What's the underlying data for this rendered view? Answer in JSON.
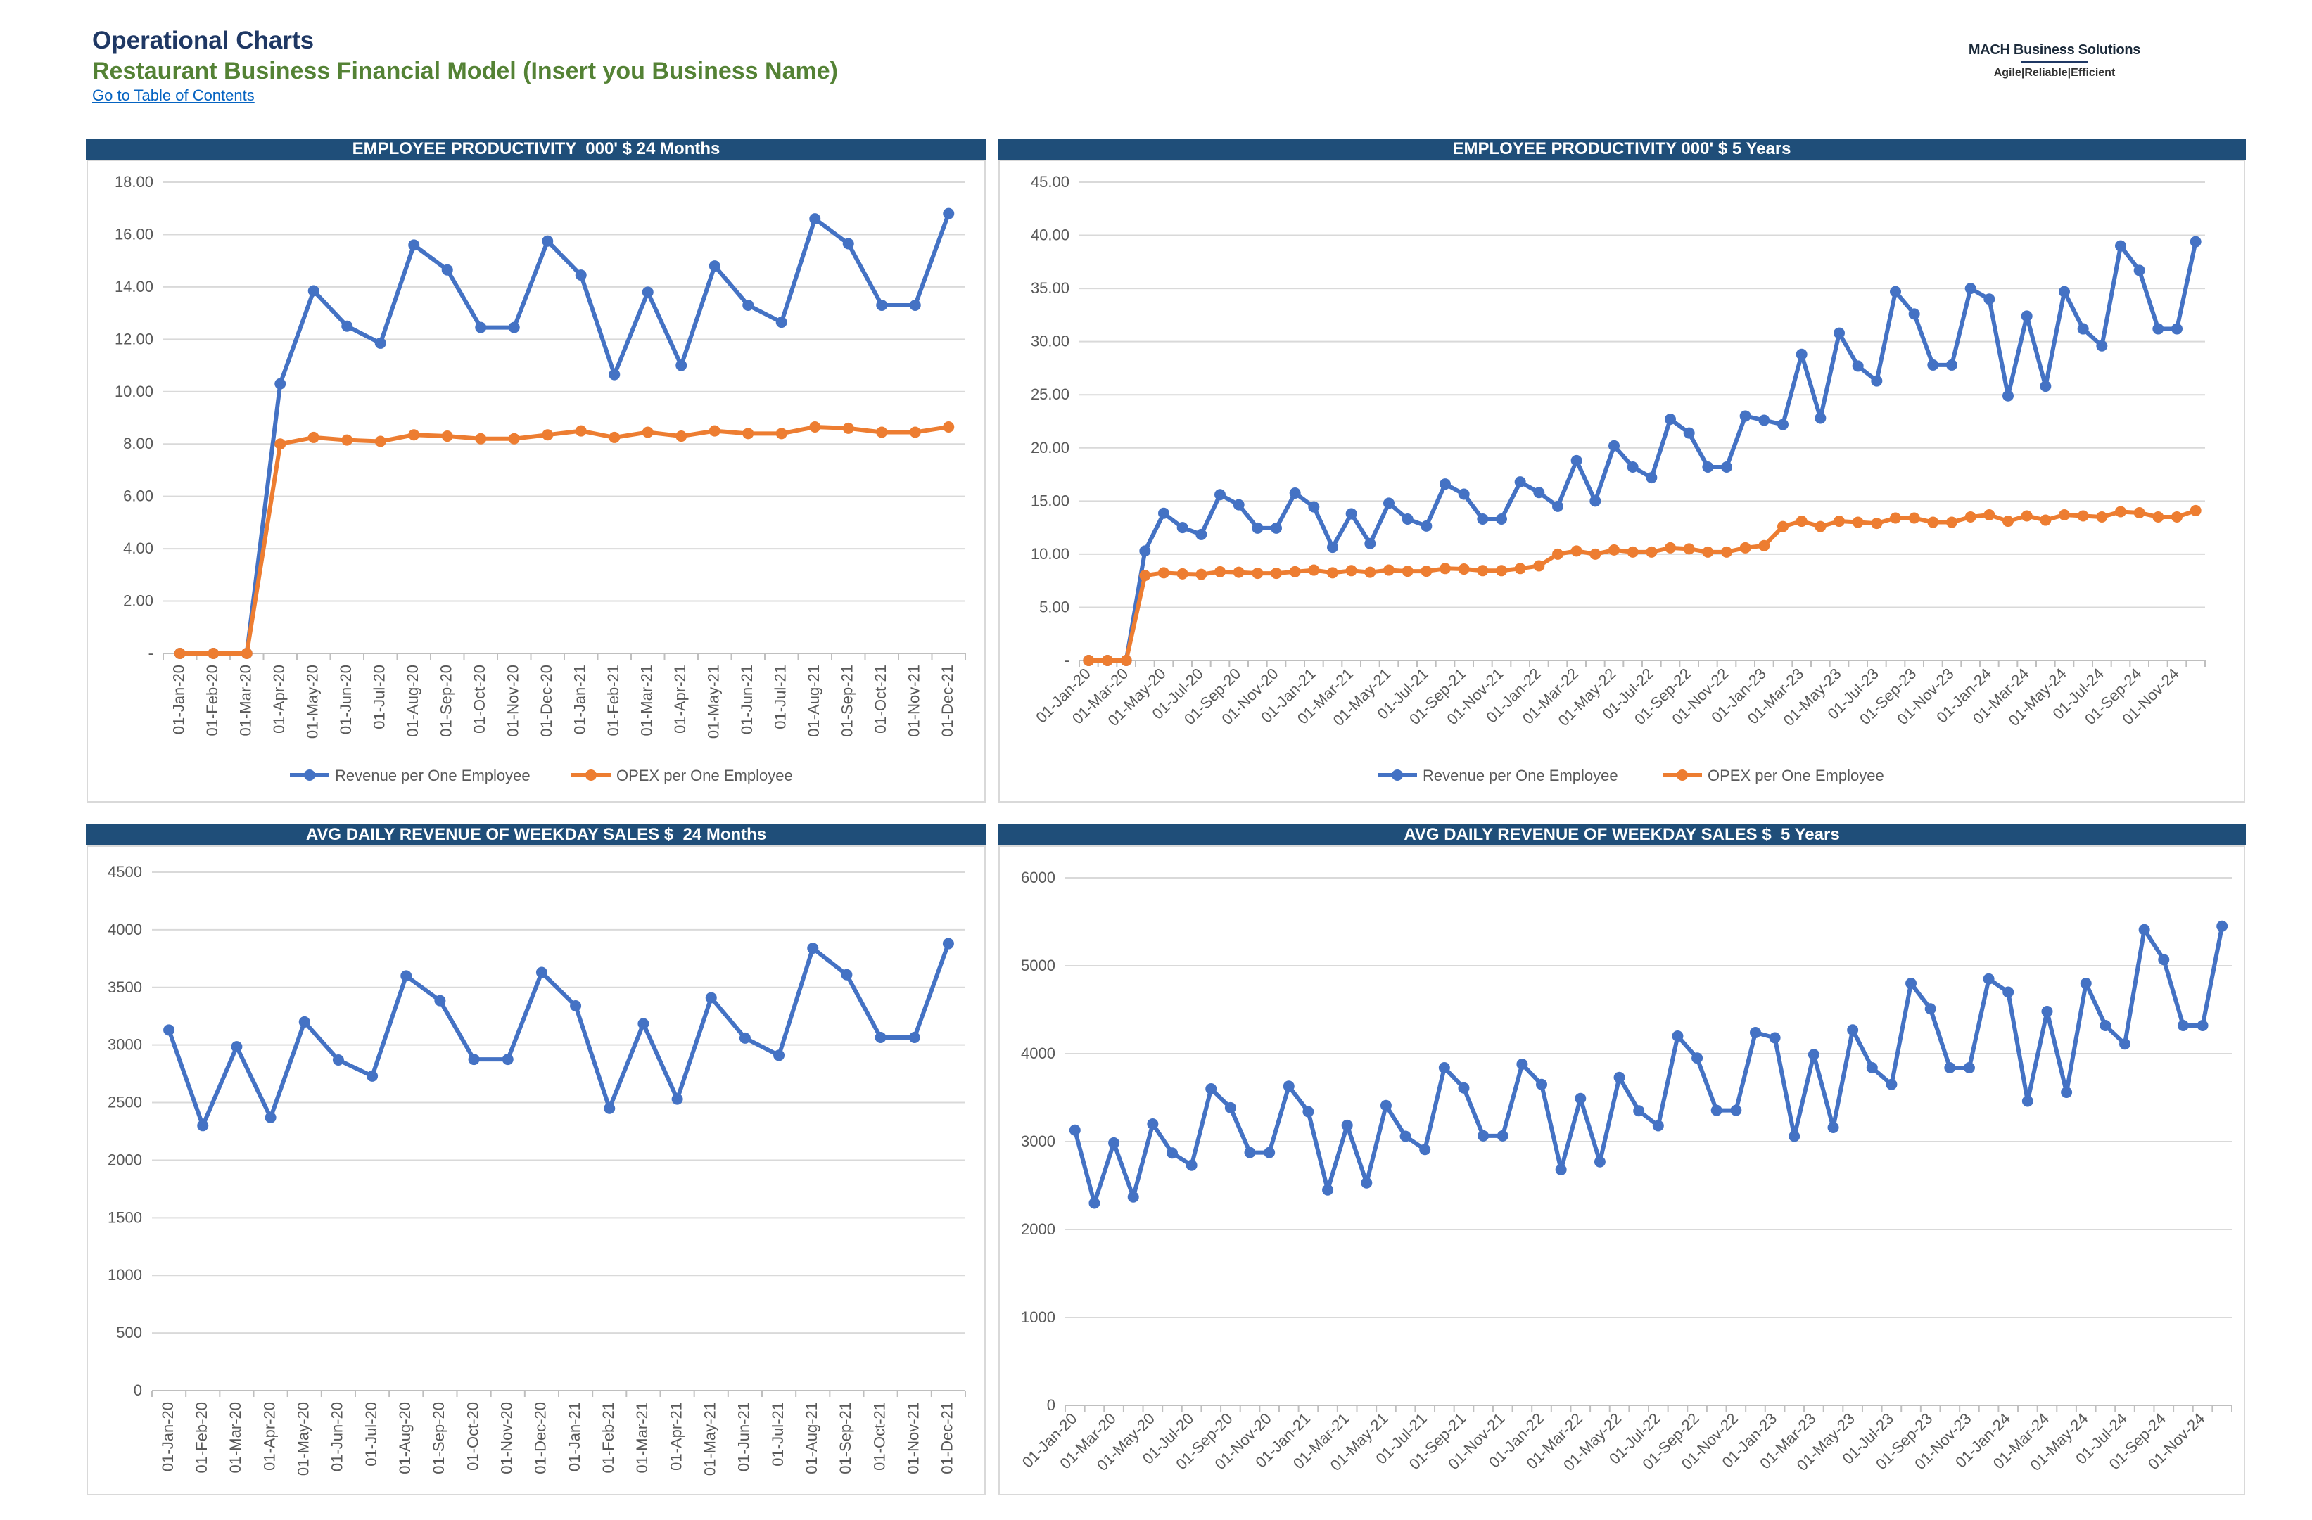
{
  "header": {
    "title": "Operational Charts",
    "subtitle": "Restaurant Business Financial Model (Insert you Business Name)",
    "toc_link": "Go to Table of Contents"
  },
  "logo": {
    "name": "MACH Business Solutions",
    "tagline": "Agile|Reliable|Efficient"
  },
  "colors": {
    "header_bar": "#1f4e79",
    "revenue_series": "#4472c4",
    "opex_series": "#ed7d31",
    "title_blue": "#1f3864",
    "subtitle_green": "#548235"
  },
  "chart_data": [
    {
      "type": "line",
      "title": "EMPLOYEE PRODUCTIVITY  000' $ 24 Months",
      "x": [
        "01-Jan-20",
        "01-Feb-20",
        "01-Mar-20",
        "01-Apr-20",
        "01-May-20",
        "01-Jun-20",
        "01-Jul-20",
        "01-Aug-20",
        "01-Sep-20",
        "01-Oct-20",
        "01-Nov-20",
        "01-Dec-20",
        "01-Jan-21",
        "01-Feb-21",
        "01-Mar-21",
        "01-Apr-21",
        "01-May-21",
        "01-Jun-21",
        "01-Jul-21",
        "01-Aug-21",
        "01-Sep-21",
        "01-Oct-21",
        "01-Nov-21",
        "01-Dec-21"
      ],
      "x_tick_labels": [
        "01-Jan-20",
        "01-Feb-20",
        "01-Mar-20",
        "01-Apr-20",
        "01-May-20",
        "01-Jun-20",
        "01-Jul-20",
        "01-Aug-20",
        "01-Sep-20",
        "01-Oct-20",
        "01-Nov-20",
        "01-Dec-20",
        "01-Jan-21",
        "01-Feb-21",
        "01-Mar-21",
        "01-Apr-21",
        "01-May-21",
        "01-Jun-21",
        "01-Jul-21",
        "01-Aug-21",
        "01-Sep-21",
        "01-Oct-21",
        "01-Nov-21",
        "01-Dec-21"
      ],
      "y_ticks": [
        "-",
        "2.00",
        "4.00",
        "6.00",
        "8.00",
        "10.00",
        "12.00",
        "14.00",
        "16.00",
        "18.00"
      ],
      "ylim": [
        0,
        18
      ],
      "grid": true,
      "legend_position": "bottom",
      "series": [
        {
          "name": "Revenue per One Employee",
          "color": "#4472c4",
          "values": [
            0,
            0,
            0,
            10.3,
            13.85,
            12.5,
            11.85,
            15.6,
            14.65,
            12.45,
            12.45,
            15.75,
            14.45,
            10.65,
            13.8,
            11.0,
            14.8,
            13.3,
            12.65,
            16.6,
            15.65,
            13.3,
            13.3,
            16.8
          ]
        },
        {
          "name": "OPEX per One Employee",
          "color": "#ed7d31",
          "values": [
            0,
            0,
            0,
            8.0,
            8.25,
            8.15,
            8.1,
            8.35,
            8.3,
            8.2,
            8.2,
            8.35,
            8.5,
            8.25,
            8.45,
            8.3,
            8.5,
            8.4,
            8.4,
            8.65,
            8.6,
            8.45,
            8.45,
            8.65
          ]
        }
      ]
    },
    {
      "type": "line",
      "title": "EMPLOYEE PRODUCTIVITY 000' $ 5 Years",
      "x": [
        "01-Jan-20",
        "01-Feb-20",
        "01-Mar-20",
        "01-Apr-20",
        "01-May-20",
        "01-Jun-20",
        "01-Jul-20",
        "01-Aug-20",
        "01-Sep-20",
        "01-Oct-20",
        "01-Nov-20",
        "01-Dec-20",
        "01-Jan-21",
        "01-Feb-21",
        "01-Mar-21",
        "01-Apr-21",
        "01-May-21",
        "01-Jun-21",
        "01-Jul-21",
        "01-Aug-21",
        "01-Sep-21",
        "01-Oct-21",
        "01-Nov-21",
        "01-Dec-21",
        "01-Jan-22",
        "01-Feb-22",
        "01-Mar-22",
        "01-Apr-22",
        "01-May-22",
        "01-Jun-22",
        "01-Jul-22",
        "01-Aug-22",
        "01-Sep-22",
        "01-Oct-22",
        "01-Nov-22",
        "01-Dec-22",
        "01-Jan-23",
        "01-Feb-23",
        "01-Mar-23",
        "01-Apr-23",
        "01-May-23",
        "01-Jun-23",
        "01-Jul-23",
        "01-Aug-23",
        "01-Sep-23",
        "01-Oct-23",
        "01-Nov-23",
        "01-Dec-23",
        "01-Jan-24",
        "01-Feb-24",
        "01-Mar-24",
        "01-Apr-24",
        "01-May-24",
        "01-Jun-24",
        "01-Jul-24",
        "01-Aug-24",
        "01-Sep-24",
        "01-Oct-24",
        "01-Nov-24",
        "01-Dec-24"
      ],
      "x_tick_labels": [
        "01-Jan-20",
        "01-Mar-20",
        "01-May-20",
        "01-Jul-20",
        "01-Sep-20",
        "01-Nov-20",
        "01-Jan-21",
        "01-Mar-21",
        "01-May-21",
        "01-Jul-21",
        "01-Sep-21",
        "01-Nov-21",
        "01-Jan-22",
        "01-Mar-22",
        "01-May-22",
        "01-Jul-22",
        "01-Sep-22",
        "01-Nov-22",
        "01-Jan-23",
        "01-Mar-23",
        "01-May-23",
        "01-Jul-23",
        "01-Sep-23",
        "01-Nov-23",
        "01-Jan-24",
        "01-Mar-24",
        "01-May-24",
        "01-Jul-24",
        "01-Sep-24",
        "01-Nov-24"
      ],
      "y_ticks": [
        "-",
        "5.00",
        "10.00",
        "15.00",
        "20.00",
        "25.00",
        "30.00",
        "35.00",
        "40.00",
        "45.00"
      ],
      "ylim": [
        0,
        45
      ],
      "grid": true,
      "legend_position": "bottom",
      "series": [
        {
          "name": "Revenue per One Employee",
          "color": "#4472c4",
          "values": [
            0,
            0,
            0,
            10.3,
            13.85,
            12.5,
            11.85,
            15.6,
            14.65,
            12.45,
            12.45,
            15.75,
            14.45,
            10.65,
            13.8,
            11.0,
            14.8,
            13.3,
            12.65,
            16.6,
            15.65,
            13.3,
            13.3,
            16.8,
            15.8,
            14.5,
            18.8,
            15.0,
            20.2,
            18.2,
            17.2,
            22.7,
            21.4,
            18.2,
            18.2,
            23.0,
            22.6,
            22.2,
            28.8,
            22.8,
            30.8,
            27.7,
            26.3,
            34.7,
            32.6,
            27.8,
            27.8,
            35.0,
            34.0,
            24.9,
            32.4,
            25.8,
            34.7,
            31.2,
            29.6,
            39.0,
            36.7,
            31.2,
            31.2,
            39.4
          ]
        },
        {
          "name": "OPEX per One Employee",
          "color": "#ed7d31",
          "values": [
            0,
            0,
            0,
            8.0,
            8.25,
            8.15,
            8.1,
            8.35,
            8.3,
            8.2,
            8.2,
            8.35,
            8.5,
            8.25,
            8.45,
            8.3,
            8.5,
            8.4,
            8.4,
            8.65,
            8.6,
            8.45,
            8.45,
            8.65,
            8.9,
            10.0,
            10.3,
            10.0,
            10.4,
            10.2,
            10.2,
            10.6,
            10.5,
            10.2,
            10.2,
            10.6,
            10.8,
            12.6,
            13.1,
            12.6,
            13.1,
            13.0,
            12.9,
            13.4,
            13.4,
            13.0,
            13.0,
            13.5,
            13.7,
            13.1,
            13.6,
            13.2,
            13.7,
            13.6,
            13.5,
            14.0,
            13.9,
            13.5,
            13.5,
            14.1
          ]
        }
      ]
    },
    {
      "type": "line",
      "title": "AVG DAILY REVENUE OF WEEKDAY SALES $  24 Months",
      "x": [
        "01-Jan-20",
        "01-Feb-20",
        "01-Mar-20",
        "01-Apr-20",
        "01-May-20",
        "01-Jun-20",
        "01-Jul-20",
        "01-Aug-20",
        "01-Sep-20",
        "01-Oct-20",
        "01-Nov-20",
        "01-Dec-20",
        "01-Jan-21",
        "01-Feb-21",
        "01-Mar-21",
        "01-Apr-21",
        "01-May-21",
        "01-Jun-21",
        "01-Jul-21",
        "01-Aug-21",
        "01-Sep-21",
        "01-Oct-21",
        "01-Nov-21",
        "01-Dec-21"
      ],
      "x_tick_labels": [
        "01-Jan-20",
        "01-Feb-20",
        "01-Mar-20",
        "01-Apr-20",
        "01-May-20",
        "01-Jun-20",
        "01-Jul-20",
        "01-Aug-20",
        "01-Sep-20",
        "01-Oct-20",
        "01-Nov-20",
        "01-Dec-20",
        "01-Jan-21",
        "01-Feb-21",
        "01-Mar-21",
        "01-Apr-21",
        "01-May-21",
        "01-Jun-21",
        "01-Jul-21",
        "01-Aug-21",
        "01-Sep-21",
        "01-Oct-21",
        "01-Nov-21",
        "01-Dec-21"
      ],
      "y_ticks": [
        "0",
        "500",
        "1000",
        "1500",
        "2000",
        "2500",
        "3000",
        "3500",
        "4000",
        "4500"
      ],
      "ylim": [
        0,
        4500
      ],
      "grid": true,
      "series": [
        {
          "color": "#4472c4",
          "values": [
            3130,
            2300,
            2985,
            2370,
            3200,
            2870,
            2730,
            3600,
            3385,
            2875,
            2875,
            3630,
            3340,
            2450,
            3185,
            2530,
            3410,
            3060,
            2910,
            3840,
            3610,
            3065,
            3065,
            3880
          ]
        }
      ]
    },
    {
      "type": "line",
      "title": "AVG DAILY REVENUE OF WEEKDAY SALES $  5 Years",
      "x": [
        "01-Jan-20",
        "01-Feb-20",
        "01-Mar-20",
        "01-Apr-20",
        "01-May-20",
        "01-Jun-20",
        "01-Jul-20",
        "01-Aug-20",
        "01-Sep-20",
        "01-Oct-20",
        "01-Nov-20",
        "01-Dec-20",
        "01-Jan-21",
        "01-Feb-21",
        "01-Mar-21",
        "01-Apr-21",
        "01-May-21",
        "01-Jun-21",
        "01-Jul-21",
        "01-Aug-21",
        "01-Sep-21",
        "01-Oct-21",
        "01-Nov-21",
        "01-Dec-21",
        "01-Jan-22",
        "01-Feb-22",
        "01-Mar-22",
        "01-Apr-22",
        "01-May-22",
        "01-Jun-22",
        "01-Jul-22",
        "01-Aug-22",
        "01-Sep-22",
        "01-Oct-22",
        "01-Nov-22",
        "01-Dec-22",
        "01-Jan-23",
        "01-Feb-23",
        "01-Mar-23",
        "01-Apr-23",
        "01-May-23",
        "01-Jun-23",
        "01-Jul-23",
        "01-Aug-23",
        "01-Sep-23",
        "01-Oct-23",
        "01-Nov-23",
        "01-Dec-23",
        "01-Jan-24",
        "01-Feb-24",
        "01-Mar-24",
        "01-Apr-24",
        "01-May-24",
        "01-Jun-24",
        "01-Jul-24",
        "01-Aug-24",
        "01-Sep-24",
        "01-Oct-24",
        "01-Nov-24",
        "01-Dec-24"
      ],
      "x_tick_labels": [
        "01-Jan-20",
        "01-Mar-20",
        "01-May-20",
        "01-Jul-20",
        "01-Sep-20",
        "01-Nov-20",
        "01-Jan-21",
        "01-Mar-21",
        "01-May-21",
        "01-Jul-21",
        "01-Sep-21",
        "01-Nov-21",
        "01-Jan-22",
        "01-Mar-22",
        "01-May-22",
        "01-Jul-22",
        "01-Sep-22",
        "01-Nov-22",
        "01-Jan-23",
        "01-Mar-23",
        "01-May-23",
        "01-Jul-23",
        "01-Sep-23",
        "01-Nov-23",
        "01-Jan-24",
        "01-Mar-24",
        "01-May-24",
        "01-Jul-24",
        "01-Sep-24",
        "01-Nov-24"
      ],
      "y_ticks": [
        "0",
        "1000",
        "2000",
        "3000",
        "4000",
        "5000",
        "6000"
      ],
      "ylim": [
        0,
        6000
      ],
      "grid": true,
      "series": [
        {
          "color": "#4472c4",
          "values": [
            3130,
            2300,
            2985,
            2370,
            3200,
            2870,
            2730,
            3600,
            3385,
            2875,
            2875,
            3630,
            3340,
            2450,
            3185,
            2530,
            3410,
            3060,
            2910,
            3840,
            3610,
            3065,
            3065,
            3880,
            3650,
            2680,
            3490,
            2770,
            3730,
            3350,
            3180,
            4200,
            3950,
            3355,
            3355,
            4240,
            4180,
            3060,
            3990,
            3160,
            4270,
            3840,
            3650,
            4800,
            4510,
            3840,
            3840,
            4850,
            4700,
            3460,
            4480,
            3560,
            4800,
            4320,
            4110,
            5410,
            5070,
            4320,
            4320,
            5450
          ]
        }
      ]
    }
  ]
}
